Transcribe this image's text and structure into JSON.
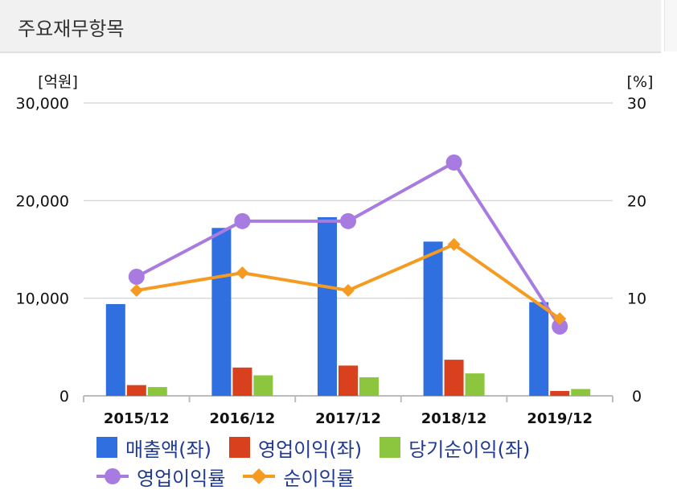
{
  "header": {
    "title": "주요재무항목"
  },
  "chart_data": {
    "type": "bar",
    "categories": [
      "2015/12",
      "2016/12",
      "2017/12",
      "2018/12",
      "2019/12"
    ],
    "left_axis": {
      "unit_label": "[억원]",
      "ylim": [
        0,
        30000
      ],
      "ticks": [
        "0",
        "10,000",
        "20,000",
        "30,000"
      ]
    },
    "right_axis": {
      "unit_label": "[%]",
      "ylim": [
        0,
        30
      ],
      "ticks": [
        "0",
        "10",
        "20",
        "30"
      ]
    },
    "grid": true,
    "legend_position": "bottom",
    "series": [
      {
        "name": "매출액(좌)",
        "kind": "bar",
        "axis": "left",
        "color": "#2f6fe0",
        "values": [
          9400,
          17200,
          18300,
          15800,
          9600
        ]
      },
      {
        "name": "영업이익(좌)",
        "kind": "bar",
        "axis": "left",
        "color": "#d9401d",
        "values": [
          1100,
          2900,
          3100,
          3700,
          500
        ]
      },
      {
        "name": "당기순이익(좌)",
        "kind": "bar",
        "axis": "left",
        "color": "#8cc63f",
        "values": [
          900,
          2100,
          1900,
          2300,
          700
        ]
      },
      {
        "name": "영업이익률",
        "kind": "line",
        "axis": "right",
        "marker": "circle",
        "color": "#a77be0",
        "values": [
          12.2,
          17.9,
          17.9,
          23.9,
          7.1
        ]
      },
      {
        "name": "순이익률",
        "kind": "line",
        "axis": "right",
        "marker": "diamond",
        "color": "#f59b22",
        "values": [
          10.8,
          12.6,
          10.8,
          15.5,
          7.9
        ]
      }
    ]
  }
}
